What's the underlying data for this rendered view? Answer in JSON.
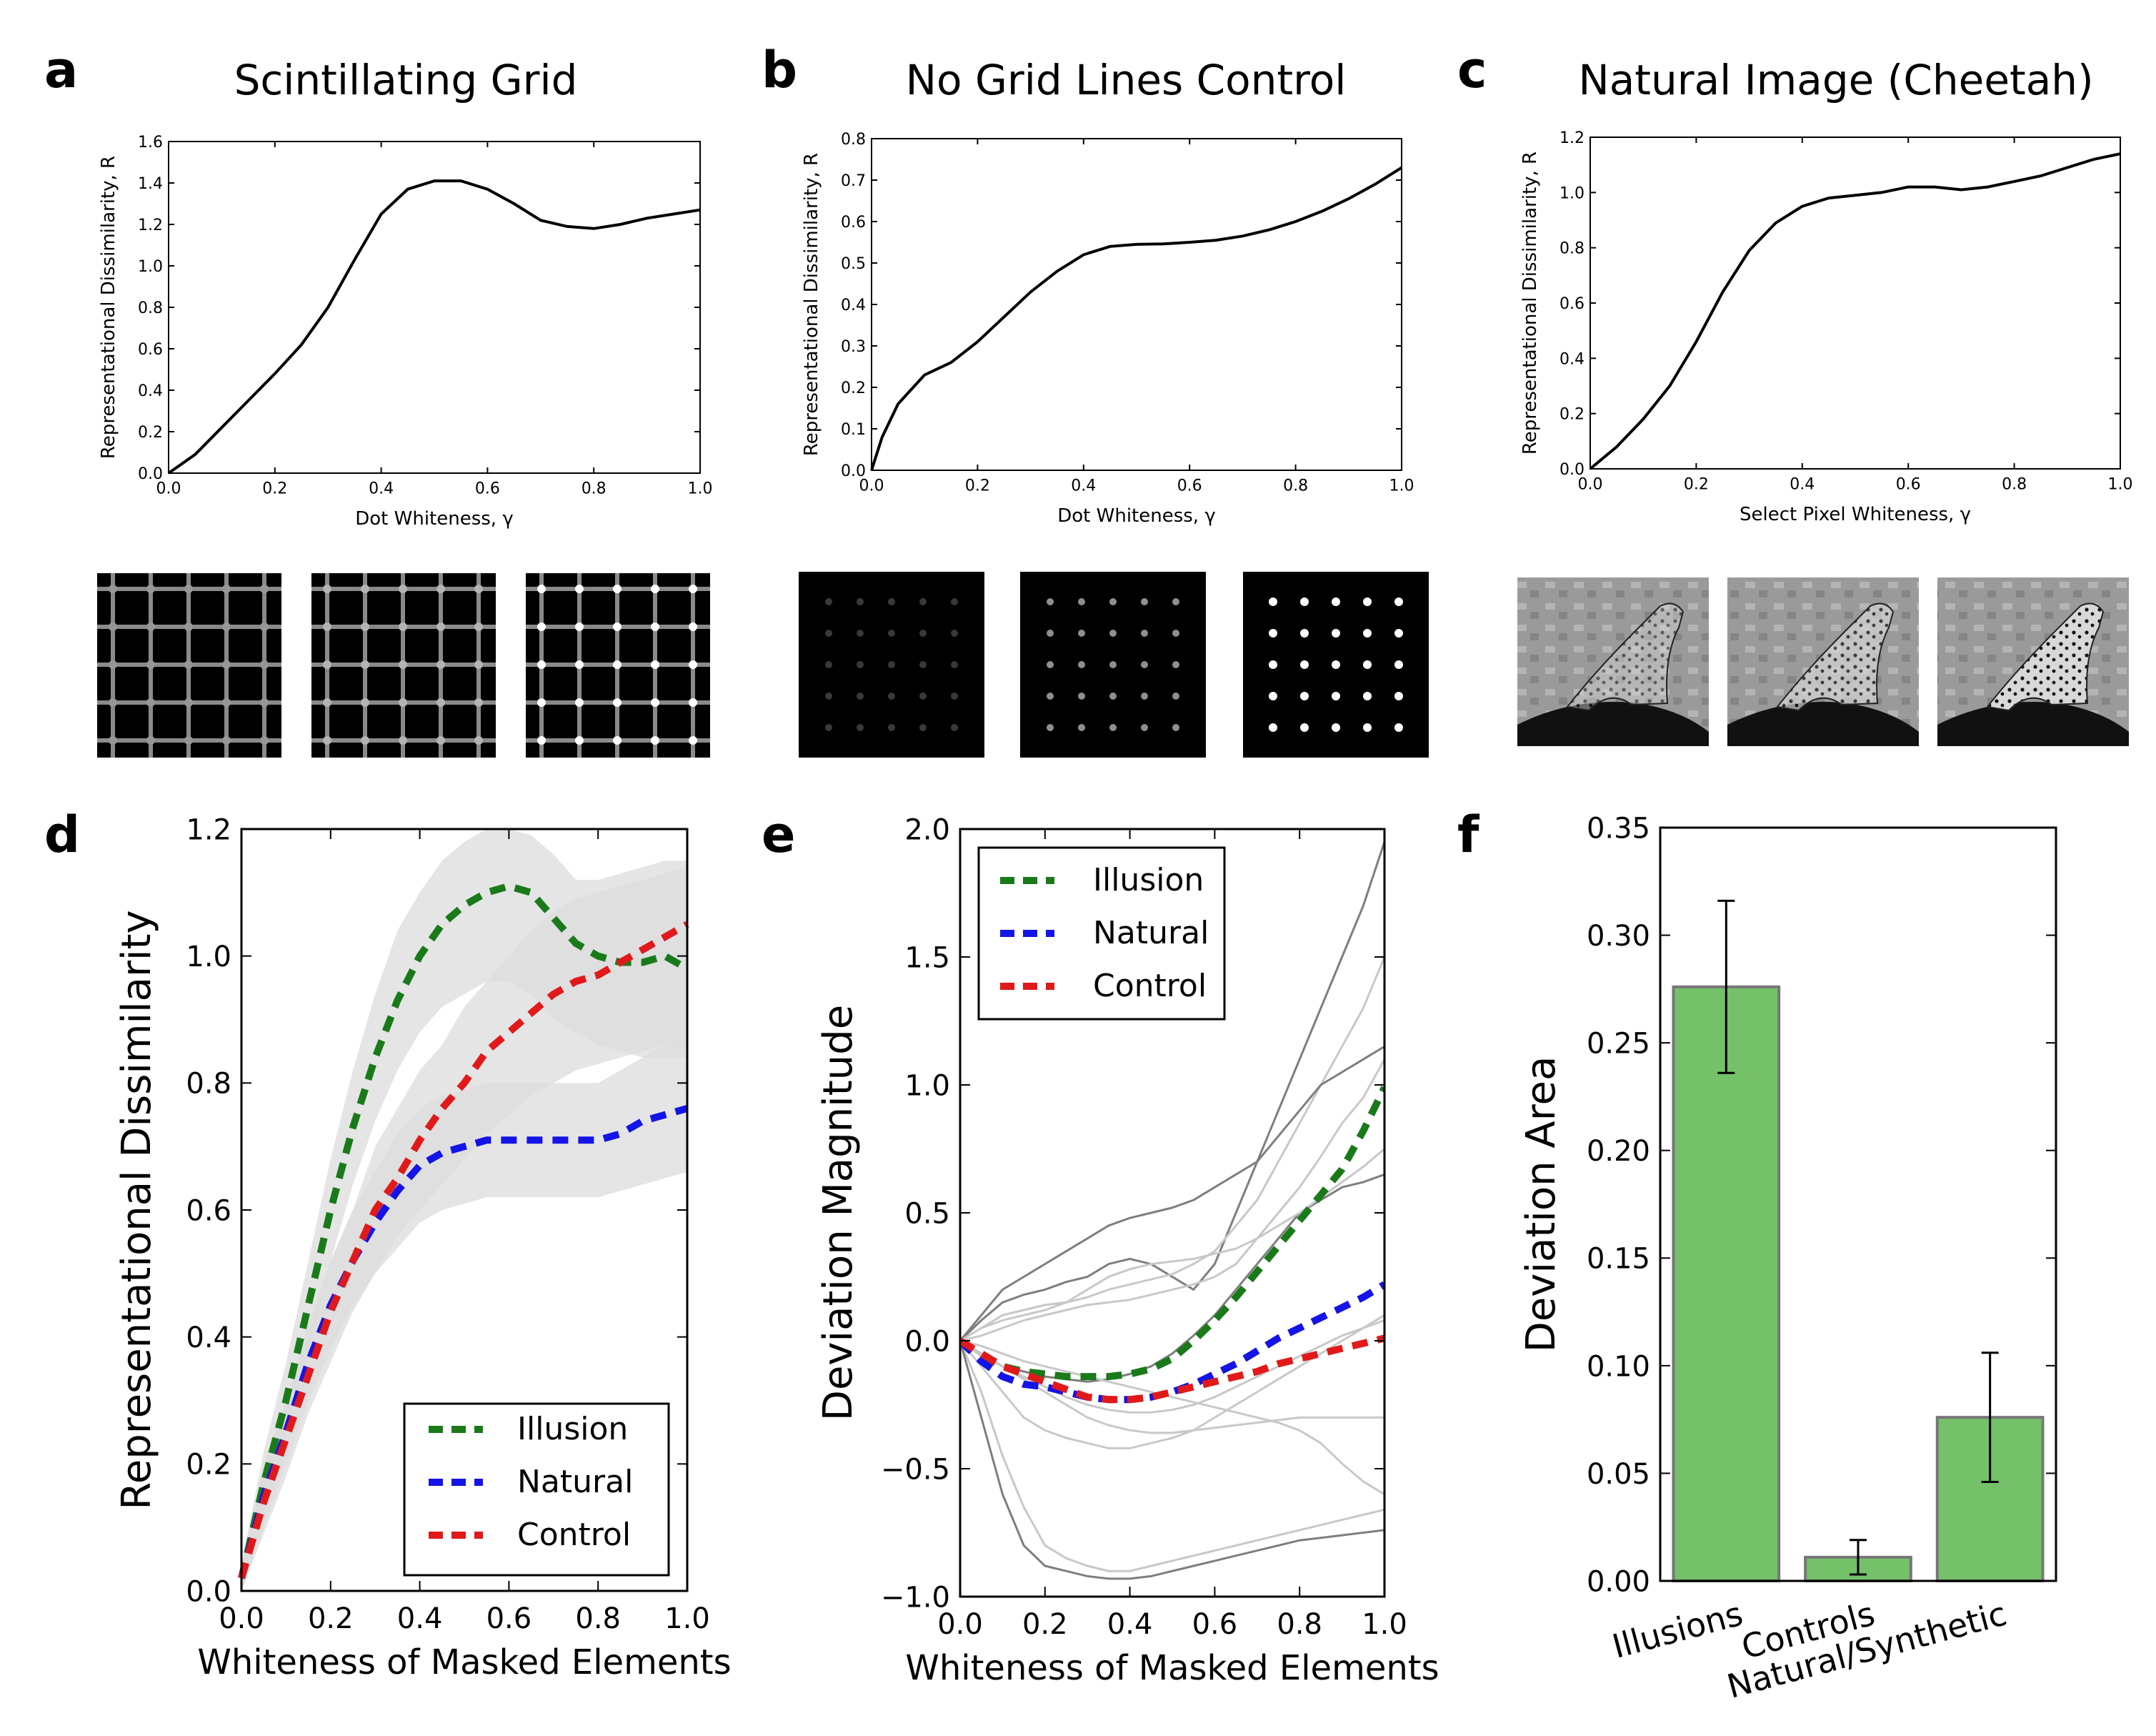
{
  "panels": {
    "a": {
      "letter": "a",
      "title": "Scintillating Grid"
    },
    "b": {
      "letter": "b",
      "title": "No Grid Lines Control"
    },
    "c": {
      "letter": "c",
      "title": "Natural Image (Cheetah)"
    },
    "d": {
      "letter": "d"
    },
    "e": {
      "letter": "e"
    },
    "f": {
      "letter": "f"
    }
  },
  "colors": {
    "illusion": "#1a7a1a",
    "natural": "#1414e6",
    "control": "#e01a1a",
    "bar_fill": "#74c16a",
    "bar_edge": "#777777",
    "band": "#dcdcdc",
    "thin_lines": "#8c8c8c"
  },
  "chart_data": [
    {
      "id": "a",
      "type": "line",
      "title": "Scintillating Grid",
      "xlabel": "Dot Whiteness, γ",
      "ylabel": "Representational Dissimilarity, R",
      "xlim": [
        0,
        1
      ],
      "ylim": [
        0,
        1.6
      ],
      "xticks": [
        "0.0",
        "0.2",
        "0.4",
        "0.6",
        "0.8",
        "1.0"
      ],
      "yticks": [
        "0.0",
        "0.2",
        "0.4",
        "0.6",
        "0.8",
        "1.0",
        "1.2",
        "1.4",
        "1.6"
      ],
      "series": [
        {
          "x": [
            0,
            0.05,
            0.1,
            0.15,
            0.2,
            0.25,
            0.3,
            0.35,
            0.4,
            0.45,
            0.5,
            0.55,
            0.6,
            0.65,
            0.7,
            0.75,
            0.8,
            0.85,
            0.9,
            0.95,
            1.0
          ],
          "y": [
            0,
            0.09,
            0.22,
            0.35,
            0.48,
            0.62,
            0.8,
            1.03,
            1.25,
            1.37,
            1.41,
            1.41,
            1.37,
            1.3,
            1.22,
            1.19,
            1.18,
            1.2,
            1.23,
            1.25,
            1.27
          ]
        }
      ]
    },
    {
      "id": "b",
      "type": "line",
      "title": "No Grid Lines Control",
      "xlabel": "Dot Whiteness, γ",
      "ylabel": "Representational Dissimilarity, R",
      "xlim": [
        0,
        1
      ],
      "ylim": [
        0,
        0.8
      ],
      "xticks": [
        "0.0",
        "0.2",
        "0.4",
        "0.6",
        "0.8",
        "1.0"
      ],
      "yticks": [
        "0.0",
        "0.1",
        "0.2",
        "0.3",
        "0.4",
        "0.5",
        "0.6",
        "0.7",
        "0.8"
      ],
      "series": [
        {
          "x": [
            0,
            0.02,
            0.05,
            0.1,
            0.15,
            0.2,
            0.25,
            0.3,
            0.35,
            0.4,
            0.45,
            0.5,
            0.55,
            0.6,
            0.65,
            0.7,
            0.75,
            0.8,
            0.85,
            0.9,
            0.95,
            1.0
          ],
          "y": [
            0,
            0.08,
            0.16,
            0.23,
            0.26,
            0.31,
            0.37,
            0.43,
            0.48,
            0.52,
            0.54,
            0.545,
            0.546,
            0.55,
            0.555,
            0.565,
            0.58,
            0.6,
            0.625,
            0.655,
            0.69,
            0.73
          ]
        }
      ]
    },
    {
      "id": "c",
      "type": "line",
      "title": "Natural Image (Cheetah)",
      "xlabel": "Select Pixel Whiteness, γ",
      "ylabel": "Representational Dissimilarity, R",
      "xlim": [
        0,
        1
      ],
      "ylim": [
        0,
        1.2
      ],
      "xticks": [
        "0.0",
        "0.2",
        "0.4",
        "0.6",
        "0.8",
        "1.0"
      ],
      "yticks": [
        "0.0",
        "0.2",
        "0.4",
        "0.6",
        "0.8",
        "1.0",
        "1.2"
      ],
      "series": [
        {
          "x": [
            0,
            0.05,
            0.1,
            0.15,
            0.2,
            0.25,
            0.3,
            0.35,
            0.4,
            0.45,
            0.5,
            0.55,
            0.6,
            0.65,
            0.7,
            0.75,
            0.8,
            0.85,
            0.9,
            0.95,
            1.0
          ],
          "y": [
            0,
            0.08,
            0.18,
            0.3,
            0.46,
            0.64,
            0.79,
            0.89,
            0.95,
            0.98,
            0.99,
            1.0,
            1.02,
            1.02,
            1.01,
            1.02,
            1.04,
            1.06,
            1.09,
            1.12,
            1.14
          ]
        }
      ]
    },
    {
      "id": "d",
      "type": "line",
      "xlabel": "Whiteness of Masked Elements",
      "ylabel": "Representational Dissimilarity",
      "xlim": [
        0,
        1
      ],
      "ylim": [
        0,
        1.2
      ],
      "xticks": [
        "0.0",
        "0.2",
        "0.4",
        "0.6",
        "0.8",
        "1.0"
      ],
      "yticks": [
        "0.0",
        "0.2",
        "0.4",
        "0.6",
        "0.8",
        "1.0",
        "1.2"
      ],
      "legend": "lower-right",
      "series": [
        {
          "name": "Illusion",
          "color": "#1a7a1a",
          "x": [
            0,
            0.05,
            0.1,
            0.15,
            0.2,
            0.25,
            0.3,
            0.35,
            0.4,
            0.45,
            0.5,
            0.55,
            0.6,
            0.65,
            0.7,
            0.75,
            0.8,
            0.85,
            0.9,
            0.95,
            1.0
          ],
          "y": [
            0.02,
            0.17,
            0.3,
            0.45,
            0.6,
            0.73,
            0.84,
            0.93,
            1.0,
            1.05,
            1.08,
            1.1,
            1.11,
            1.1,
            1.06,
            1.02,
            1.0,
            0.99,
            0.99,
            1.0,
            0.98
          ],
          "band_lo": [
            0,
            0.12,
            0.24,
            0.38,
            0.52,
            0.64,
            0.74,
            0.82,
            0.88,
            0.92,
            0.94,
            0.96,
            0.96,
            0.94,
            0.9,
            0.88,
            0.86,
            0.85,
            0.84,
            0.84,
            0.84
          ],
          "band_hi": [
            0.04,
            0.22,
            0.36,
            0.52,
            0.68,
            0.82,
            0.94,
            1.04,
            1.1,
            1.15,
            1.18,
            1.2,
            1.2,
            1.19,
            1.16,
            1.12,
            1.12,
            1.13,
            1.14,
            1.15,
            1.15
          ]
        },
        {
          "name": "Natural",
          "color": "#1414e6",
          "x": [
            0,
            0.05,
            0.1,
            0.15,
            0.2,
            0.25,
            0.3,
            0.35,
            0.4,
            0.45,
            0.5,
            0.55,
            0.6,
            0.65,
            0.7,
            0.75,
            0.8,
            0.85,
            0.9,
            0.95,
            1.0
          ],
          "y": [
            0.02,
            0.15,
            0.25,
            0.36,
            0.45,
            0.52,
            0.58,
            0.63,
            0.67,
            0.69,
            0.7,
            0.71,
            0.71,
            0.71,
            0.71,
            0.71,
            0.71,
            0.72,
            0.74,
            0.75,
            0.76
          ],
          "band_lo": [
            0,
            0.1,
            0.2,
            0.3,
            0.38,
            0.45,
            0.5,
            0.54,
            0.58,
            0.6,
            0.61,
            0.62,
            0.62,
            0.62,
            0.62,
            0.62,
            0.62,
            0.63,
            0.64,
            0.65,
            0.66
          ],
          "band_hi": [
            0.04,
            0.2,
            0.3,
            0.42,
            0.52,
            0.6,
            0.66,
            0.72,
            0.76,
            0.78,
            0.79,
            0.8,
            0.8,
            0.8,
            0.8,
            0.8,
            0.8,
            0.82,
            0.84,
            0.86,
            0.87
          ]
        },
        {
          "name": "Control",
          "color": "#e01a1a",
          "x": [
            0,
            0.05,
            0.1,
            0.15,
            0.2,
            0.25,
            0.3,
            0.35,
            0.4,
            0.45,
            0.5,
            0.55,
            0.6,
            0.65,
            0.7,
            0.75,
            0.8,
            0.85,
            0.9,
            0.95,
            1.0
          ],
          "y": [
            0.02,
            0.14,
            0.24,
            0.34,
            0.44,
            0.52,
            0.6,
            0.65,
            0.71,
            0.76,
            0.8,
            0.85,
            0.88,
            0.91,
            0.94,
            0.96,
            0.97,
            0.99,
            1.01,
            1.03,
            1.05
          ],
          "band_lo": [
            0,
            0.09,
            0.18,
            0.28,
            0.36,
            0.44,
            0.5,
            0.56,
            0.6,
            0.64,
            0.68,
            0.72,
            0.75,
            0.78,
            0.8,
            0.82,
            0.83,
            0.84,
            0.85,
            0.86,
            0.86
          ],
          "band_hi": [
            0.04,
            0.19,
            0.3,
            0.4,
            0.52,
            0.6,
            0.7,
            0.76,
            0.82,
            0.86,
            0.92,
            0.96,
            1.0,
            1.04,
            1.07,
            1.09,
            1.1,
            1.11,
            1.12,
            1.13,
            1.14
          ]
        }
      ]
    },
    {
      "id": "e",
      "type": "line",
      "xlabel": "Whiteness of Masked Elements",
      "ylabel": "Deviation Magnitude",
      "xlim": [
        0,
        1
      ],
      "ylim": [
        -1.0,
        2.0
      ],
      "xticks": [
        "0.0",
        "0.2",
        "0.4",
        "0.6",
        "0.8",
        "1.0"
      ],
      "yticks": [
        "−1.0",
        "−0.5",
        "0.0",
        "0.5",
        "1.0",
        "1.5",
        "2.0"
      ],
      "legend": "upper-left",
      "series": [
        {
          "name": "Illusion",
          "color": "#1a7a1a",
          "x": [
            0,
            0.05,
            0.1,
            0.15,
            0.2,
            0.25,
            0.3,
            0.35,
            0.4,
            0.45,
            0.5,
            0.55,
            0.6,
            0.65,
            0.7,
            0.75,
            0.8,
            0.85,
            0.9,
            0.95,
            1.0
          ],
          "y": [
            0,
            -0.06,
            -0.1,
            -0.12,
            -0.13,
            -0.14,
            -0.14,
            -0.14,
            -0.13,
            -0.11,
            -0.07,
            0.0,
            0.08,
            0.17,
            0.27,
            0.37,
            0.47,
            0.57,
            0.67,
            0.82,
            0.99
          ]
        },
        {
          "name": "Natural",
          "color": "#1414e6",
          "x": [
            0,
            0.05,
            0.1,
            0.15,
            0.2,
            0.25,
            0.3,
            0.35,
            0.4,
            0.45,
            0.5,
            0.55,
            0.6,
            0.65,
            0.7,
            0.75,
            0.8,
            0.85,
            0.9,
            0.95,
            1.0
          ],
          "y": [
            0,
            -0.08,
            -0.14,
            -0.17,
            -0.18,
            -0.2,
            -0.22,
            -0.23,
            -0.23,
            -0.22,
            -0.2,
            -0.17,
            -0.13,
            -0.09,
            -0.04,
            0.01,
            0.05,
            0.09,
            0.13,
            0.17,
            0.22
          ]
        },
        {
          "name": "Control",
          "color": "#e01a1a",
          "x": [
            0,
            0.05,
            0.1,
            0.15,
            0.2,
            0.25,
            0.3,
            0.35,
            0.4,
            0.45,
            0.5,
            0.55,
            0.6,
            0.65,
            0.7,
            0.75,
            0.8,
            0.85,
            0.9,
            0.95,
            1.0
          ],
          "y": [
            0,
            -0.05,
            -0.1,
            -0.13,
            -0.16,
            -0.19,
            -0.22,
            -0.23,
            -0.23,
            -0.22,
            -0.2,
            -0.18,
            -0.16,
            -0.14,
            -0.12,
            -0.09,
            -0.07,
            -0.05,
            -0.03,
            -0.01,
            0.01
          ]
        }
      ],
      "thin_lines": [
        [
          0,
          0.08,
          0.15,
          0.18,
          0.2,
          0.23,
          0.25,
          0.3,
          0.32,
          0.3,
          0.25,
          0.2,
          0.3,
          0.5,
          0.7,
          0.9,
          1.1,
          1.3,
          1.5,
          1.7,
          1.95
        ],
        [
          0,
          0.05,
          0.1,
          0.12,
          0.14,
          0.15,
          0.17,
          0.2,
          0.22,
          0.24,
          0.26,
          0.3,
          0.35,
          0.45,
          0.55,
          0.7,
          0.85,
          1.0,
          1.15,
          1.3,
          1.5
        ],
        [
          0,
          0.02,
          0.05,
          0.08,
          0.1,
          0.12,
          0.14,
          0.15,
          0.16,
          0.18,
          0.2,
          0.22,
          0.25,
          0.3,
          0.4,
          0.5,
          0.6,
          0.72,
          0.85,
          0.95,
          1.1
        ],
        [
          0,
          -0.05,
          -0.1,
          -0.12,
          -0.14,
          -0.15,
          -0.16,
          -0.15,
          -0.13,
          -0.1,
          -0.05,
          0.02,
          0.1,
          0.2,
          0.3,
          0.4,
          0.5,
          0.55,
          0.6,
          0.62,
          0.65
        ],
        [
          0,
          -0.1,
          -0.2,
          -0.3,
          -0.35,
          -0.38,
          -0.4,
          -0.42,
          -0.42,
          -0.4,
          -0.38,
          -0.35,
          -0.3,
          -0.25,
          -0.2,
          -0.15,
          -0.1,
          -0.05,
          0.0,
          0.05,
          0.1
        ],
        [
          0,
          -0.2,
          -0.45,
          -0.65,
          -0.8,
          -0.85,
          -0.88,
          -0.9,
          -0.9,
          -0.88,
          -0.86,
          -0.84,
          -0.82,
          -0.8,
          -0.78,
          -0.76,
          -0.74,
          -0.72,
          -0.7,
          -0.68,
          -0.66
        ],
        [
          0,
          -0.3,
          -0.6,
          -0.8,
          -0.88,
          -0.9,
          -0.92,
          -0.93,
          -0.93,
          -0.92,
          -0.9,
          -0.88,
          -0.86,
          -0.84,
          -0.82,
          -0.8,
          -0.78,
          -0.77,
          -0.76,
          -0.75,
          -0.74
        ],
        [
          0,
          -0.05,
          -0.1,
          -0.15,
          -0.2,
          -0.25,
          -0.3,
          -0.33,
          -0.35,
          -0.36,
          -0.36,
          -0.35,
          -0.34,
          -0.33,
          -0.32,
          -0.31,
          -0.3,
          -0.3,
          -0.3,
          -0.3,
          -0.3
        ],
        [
          0,
          -0.02,
          -0.05,
          -0.08,
          -0.1,
          -0.12,
          -0.14,
          -0.16,
          -0.18,
          -0.2,
          -0.22,
          -0.24,
          -0.26,
          -0.28,
          -0.3,
          -0.32,
          -0.35,
          -0.4,
          -0.48,
          -0.55,
          -0.6
        ],
        [
          0,
          0.1,
          0.2,
          0.25,
          0.3,
          0.35,
          0.4,
          0.45,
          0.48,
          0.5,
          0.52,
          0.55,
          0.6,
          0.65,
          0.7,
          0.8,
          0.9,
          1.0,
          1.05,
          1.1,
          1.15
        ],
        [
          0,
          0.05,
          0.08,
          0.1,
          0.12,
          0.15,
          0.2,
          0.25,
          0.28,
          0.3,
          0.31,
          0.32,
          0.34,
          0.36,
          0.4,
          0.45,
          0.5,
          0.56,
          0.62,
          0.68,
          0.75
        ],
        [
          0,
          -0.06,
          -0.1,
          -0.14,
          -0.18,
          -0.22,
          -0.25,
          -0.27,
          -0.28,
          -0.28,
          -0.27,
          -0.25,
          -0.22,
          -0.18,
          -0.14,
          -0.1,
          -0.06,
          -0.02,
          0.02,
          0.05,
          0.08
        ]
      ]
    },
    {
      "id": "f",
      "type": "bar",
      "ylabel": "Deviation Area",
      "ylim": [
        0,
        0.35
      ],
      "yticks": [
        "0.00",
        "0.05",
        "0.10",
        "0.15",
        "0.20",
        "0.25",
        "0.30",
        "0.35"
      ],
      "categories": [
        "Illusions",
        "Controls",
        "Natural/Synthetic"
      ],
      "values": [
        0.276,
        0.011,
        0.076
      ],
      "errors": [
        0.04,
        0.008,
        0.03
      ]
    }
  ],
  "stimuli": {
    "a": [
      0.1,
      0.35,
      1.0
    ],
    "b": [
      0.12,
      0.5,
      1.0
    ],
    "c": [
      0.15,
      0.5,
      1.0
    ]
  }
}
